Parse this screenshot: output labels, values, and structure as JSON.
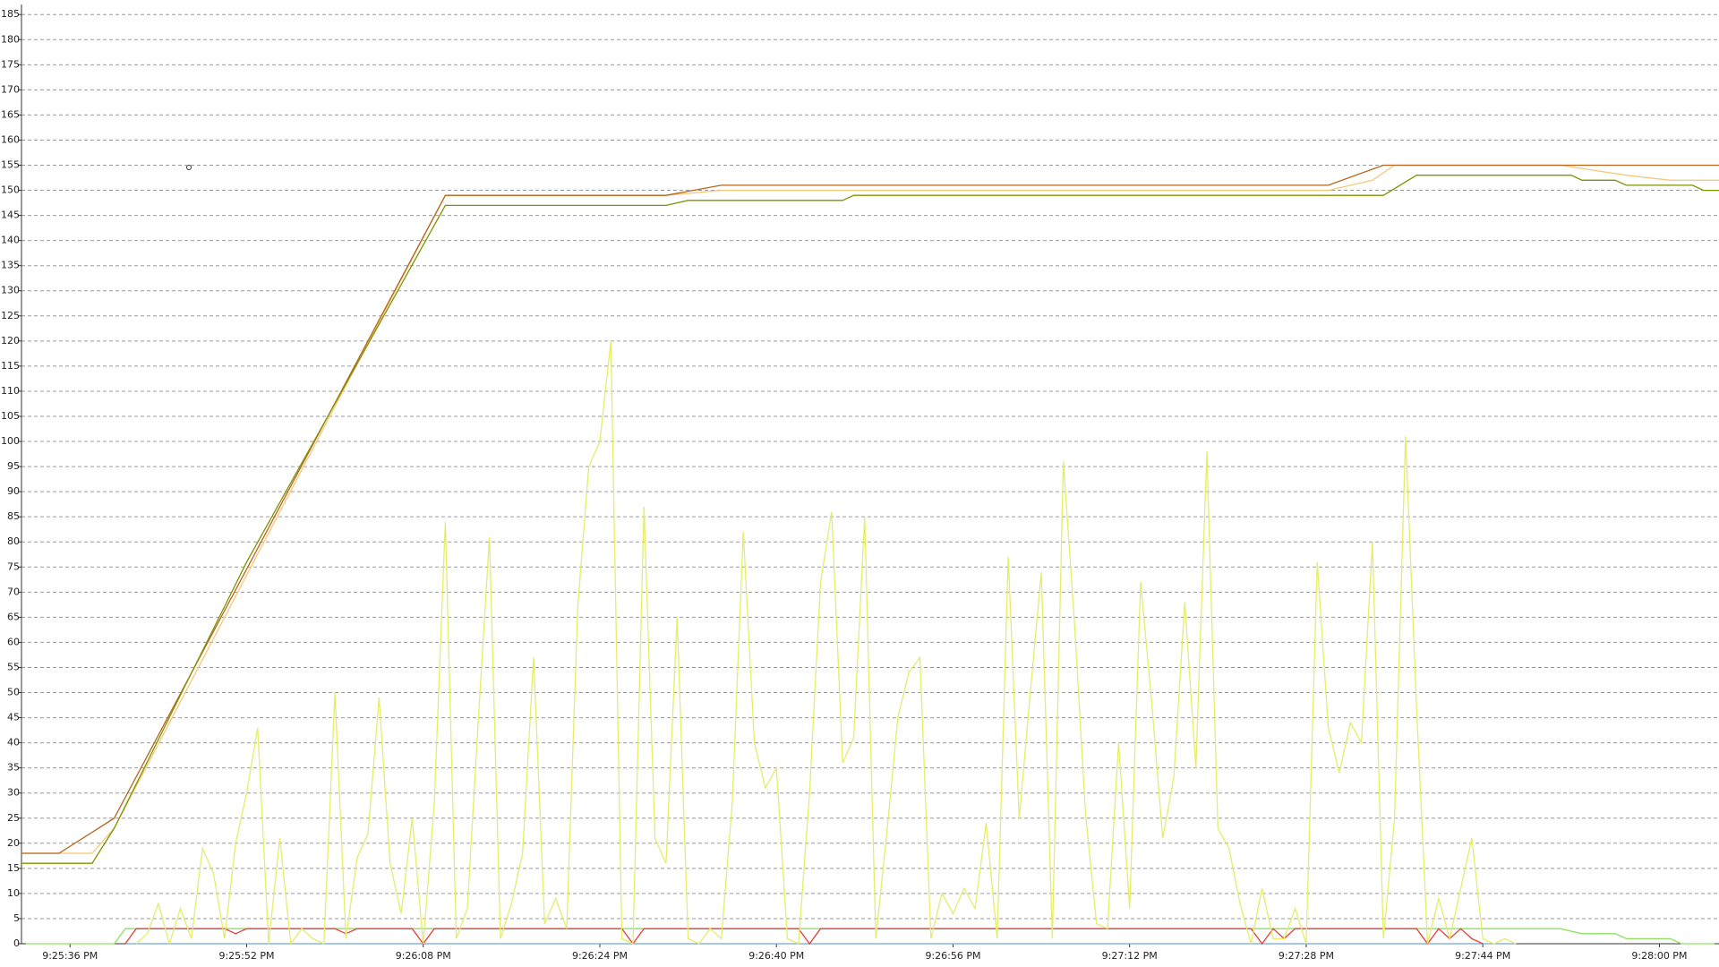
{
  "chart_data": {
    "type": "line",
    "xlim": [
      77131.6,
      77285.4
    ],
    "xticks": [
      {
        "value": 77136,
        "label": "9:25:36 PM"
      },
      {
        "value": 77152,
        "label": "9:25:52 PM"
      },
      {
        "value": 77168,
        "label": "9:26:08 PM"
      },
      {
        "value": 77184,
        "label": "9:26:24 PM"
      },
      {
        "value": 77200,
        "label": "9:26:40 PM"
      },
      {
        "value": 77216,
        "label": "9:26:56 PM"
      },
      {
        "value": 77232,
        "label": "9:27:12 PM"
      },
      {
        "value": 77248,
        "label": "9:27:28 PM"
      },
      {
        "value": 77264,
        "label": "9:27:44 PM"
      },
      {
        "value": 77280,
        "label": "9:28:00 PM"
      }
    ],
    "ylim": [
      0,
      187
    ],
    "yticks": [
      0,
      5,
      10,
      15,
      20,
      25,
      30,
      35,
      40,
      45,
      50,
      55,
      60,
      65,
      70,
      75,
      80,
      85,
      90,
      95,
      100,
      105,
      110,
      115,
      120,
      125,
      130,
      135,
      140,
      145,
      150,
      155,
      160,
      165,
      170,
      175,
      180,
      185
    ],
    "grid": true,
    "series": [
      {
        "color": "#f5c878",
        "x": [
          77131.6,
          77138,
          77140,
          77170,
          77190,
          77195,
          77250,
          77254,
          77256,
          77271,
          77274,
          77277,
          77281,
          77285.4
        ],
        "values": [
          18,
          18,
          23,
          149,
          149,
          150,
          150,
          152,
          155,
          155,
          154,
          153,
          152,
          152
        ]
      },
      {
        "color": "#b5651d",
        "x": [
          77131.6,
          77135,
          77140,
          77170,
          77190,
          77195,
          77250,
          77255,
          77285.4
        ],
        "values": [
          18,
          18,
          25,
          149,
          149,
          151,
          151,
          155,
          155
        ]
      },
      {
        "color": "#7f9400",
        "x": [
          77131.6,
          77138,
          77140,
          77152,
          77170,
          77190,
          77192,
          77206,
          77207,
          77255,
          77258,
          77272,
          77273,
          77276,
          77277,
          77283,
          77284,
          77285.4
        ],
        "values": [
          16,
          16,
          23,
          76,
          147,
          147,
          148,
          148,
          149,
          149,
          153,
          153,
          152,
          152,
          151,
          151,
          150,
          150
        ]
      },
      {
        "color": "#8fe060",
        "x": [
          77132,
          77140,
          77141,
          77271,
          77273,
          77276,
          77277,
          77281,
          77282,
          77285
        ],
        "values": [
          0,
          0,
          3,
          3,
          2,
          2,
          1,
          1,
          0,
          0
        ]
      },
      {
        "color": "#6fa8dc",
        "x": [
          77141,
          77267
        ],
        "values": [
          0,
          0
        ]
      },
      {
        "color": "#e0403a",
        "x": [
          77141,
          77142,
          77150,
          77151,
          77152,
          77160,
          77161,
          77162,
          77167,
          77168,
          77169,
          77186,
          77187,
          77188,
          77202,
          77203,
          77204,
          77243,
          77244,
          77245,
          77246,
          77247,
          77258,
          77259,
          77260,
          77261,
          77262,
          77263,
          77264
        ],
        "values": [
          0,
          3,
          3,
          2,
          3,
          3,
          2,
          3,
          3,
          0,
          3,
          3,
          0,
          3,
          3,
          0,
          3,
          3,
          0,
          3,
          1,
          3,
          3,
          0,
          3,
          1,
          3,
          1,
          0
        ]
      },
      {
        "color": "#e6ec6a",
        "x": [
          77142,
          77143,
          77144,
          77145,
          77146,
          77147,
          77148,
          77149,
          77150,
          77151,
          77152,
          77153,
          77154,
          77155,
          77156,
          77157,
          77158,
          77159,
          77160,
          77161,
          77162,
          77163,
          77164,
          77165,
          77166,
          77167,
          77168,
          77169,
          77170,
          77171,
          77172,
          77173,
          77174,
          77175,
          77176,
          77177,
          77178,
          77179,
          77180,
          77181,
          77182,
          77183,
          77184,
          77185,
          77186,
          77187,
          77188,
          77189,
          77190,
          77191,
          77192,
          77193,
          77194,
          77195,
          77196,
          77197,
          77198,
          77199,
          77200,
          77201,
          77202,
          77203,
          77204,
          77205,
          77206,
          77207,
          77208,
          77209,
          77210,
          77211,
          77212,
          77213,
          77214,
          77215,
          77216,
          77217,
          77218,
          77219,
          77220,
          77221,
          77222,
          77223,
          77224,
          77225,
          77226,
          77227,
          77228,
          77229,
          77230,
          77231,
          77232,
          77233,
          77234,
          77235,
          77236,
          77237,
          77238,
          77239,
          77240,
          77241,
          77242,
          77243,
          77244,
          77245,
          77246,
          77247,
          77248,
          77249,
          77250,
          77251,
          77252,
          77253,
          77254,
          77255,
          77256,
          77257,
          77258,
          77259,
          77260,
          77261,
          77262,
          77263,
          77264,
          77265,
          77266,
          77267
        ],
        "values": [
          0,
          2,
          8,
          0,
          7,
          1,
          19,
          14,
          1,
          20,
          30,
          43,
          0,
          21,
          0,
          3,
          1,
          0,
          50,
          1,
          17,
          22,
          49,
          16,
          6,
          25,
          0,
          28,
          84,
          1,
          7,
          45,
          81,
          1,
          8,
          18,
          57,
          4,
          9,
          3,
          67,
          95,
          100,
          120,
          1,
          0,
          87,
          21,
          16,
          65,
          1,
          0,
          3,
          1,
          28,
          82,
          40,
          31,
          35,
          1,
          0,
          30,
          72,
          86,
          36,
          41,
          85,
          1,
          22,
          45,
          54,
          57,
          1,
          10,
          6,
          11,
          7,
          24,
          1,
          77,
          25,
          50,
          74,
          1,
          96,
          64,
          26,
          4,
          3,
          40,
          7,
          72,
          48,
          21,
          33,
          68,
          35,
          98,
          23,
          19,
          8,
          0,
          11,
          1,
          1,
          7,
          0,
          76,
          43,
          34,
          44,
          40,
          80,
          1,
          25,
          101,
          47,
          0,
          9,
          1,
          11,
          21,
          1,
          0,
          1,
          0
        ]
      }
    ]
  }
}
